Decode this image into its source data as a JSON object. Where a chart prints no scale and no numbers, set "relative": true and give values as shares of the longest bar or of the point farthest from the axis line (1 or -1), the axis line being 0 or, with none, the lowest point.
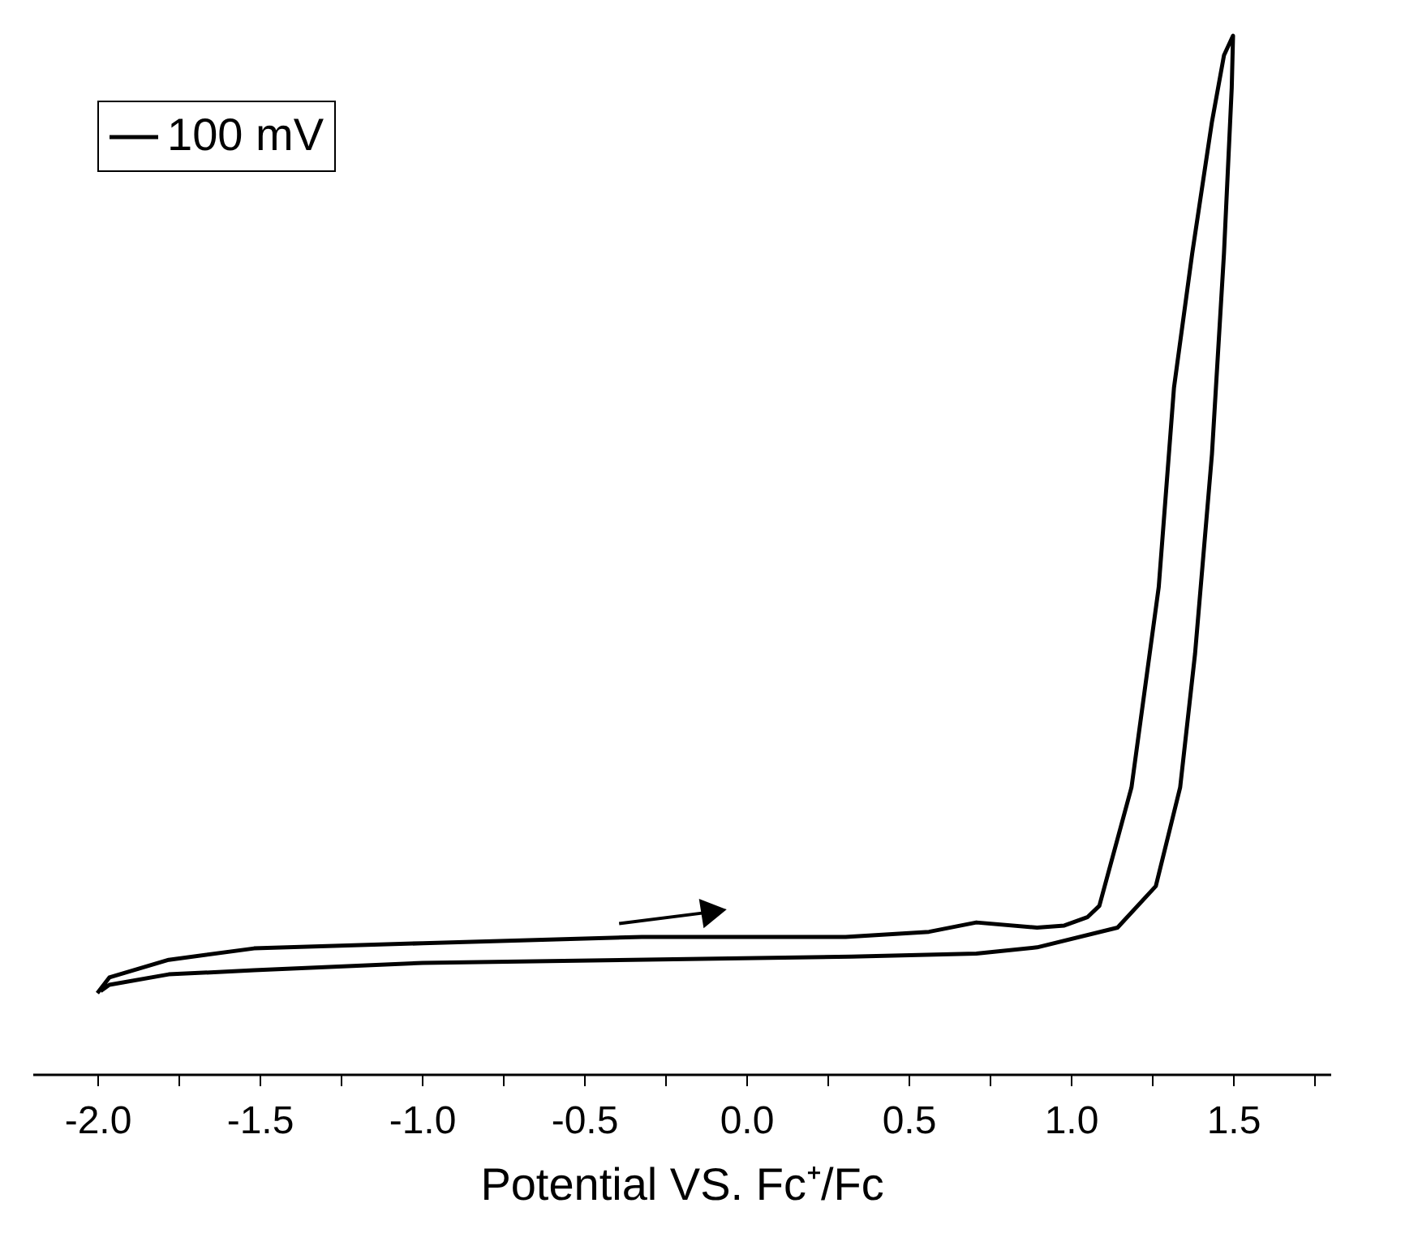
{
  "chart_data": {
    "type": "line",
    "xlabel": "Potential VS. Fc⁺/Fc",
    "relative": true,
    "xlim": [
      -2.2,
      1.8
    ],
    "xticks": [
      {
        "value": -2.0,
        "label": "-2.0"
      },
      {
        "value": -1.75,
        "label": null
      },
      {
        "value": -1.5,
        "label": "-1.5"
      },
      {
        "value": -1.25,
        "label": null
      },
      {
        "value": -1.0,
        "label": "-1.0"
      },
      {
        "value": -0.75,
        "label": null
      },
      {
        "value": -0.5,
        "label": "-0.5"
      },
      {
        "value": -0.25,
        "label": null
      },
      {
        "value": 0.0,
        "label": "0.0"
      },
      {
        "value": 0.25,
        "label": null
      },
      {
        "value": 0.5,
        "label": "0.5"
      },
      {
        "value": 0.75,
        "label": null
      },
      {
        "value": 1.0,
        "label": "1.0"
      },
      {
        "value": 1.25,
        "label": null
      },
      {
        "value": 1.5,
        "label": "1.5"
      },
      {
        "value": 1.75,
        "label": null
      }
    ],
    "series": [
      {
        "name": "100 mV",
        "color": "#000000",
        "x": [
          -2.0,
          -1.963,
          -1.78,
          -1.517,
          -0.997,
          -0.322,
          0.306,
          0.563,
          0.709,
          0.896,
          0.98,
          1.051,
          1.088,
          1.187,
          1.271,
          1.318,
          1.374,
          1.435,
          1.472,
          1.5,
          1.496,
          1.472,
          1.435,
          1.383,
          1.337,
          1.262,
          1.144,
          0.896,
          0.709,
          0.324,
          -0.997,
          -1.517,
          -1.78,
          -1.963,
          -1.99
        ],
        "values": [
          0.078,
          0.093,
          0.11,
          0.121,
          0.126,
          0.132,
          0.132,
          0.137,
          0.146,
          0.141,
          0.143,
          0.151,
          0.162,
          0.276,
          0.469,
          0.661,
          0.79,
          0.917,
          0.981,
          1.0,
          0.95,
          0.79,
          0.597,
          0.405,
          0.276,
          0.181,
          0.141,
          0.122,
          0.116,
          0.113,
          0.107,
          0.1,
          0.096,
          0.086,
          0.08
        ]
      }
    ],
    "legend": "top left",
    "grid": false,
    "marker": "none",
    "line_style": "solid"
  }
}
